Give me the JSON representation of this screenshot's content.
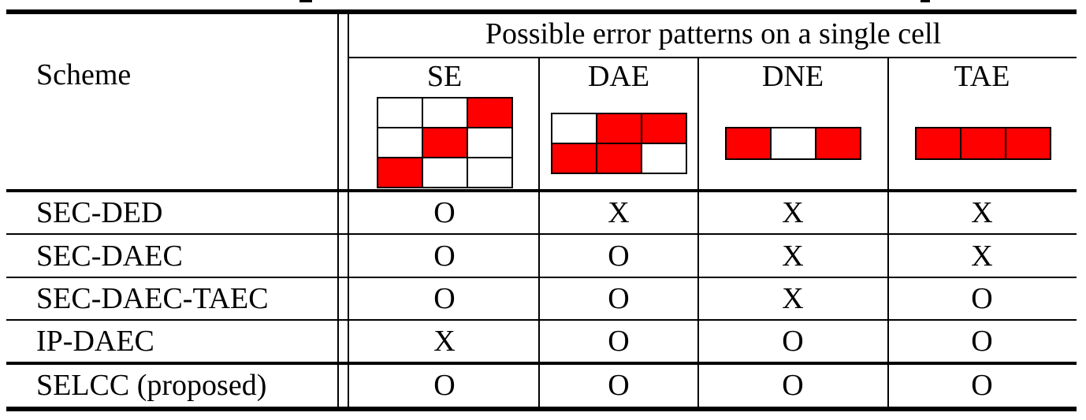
{
  "table": {
    "scheme_header": "Scheme",
    "group_header": "Possible error patterns on a single cell",
    "columns": [
      {
        "label": "SE",
        "pattern": {
          "rows": 3,
          "cols": 3,
          "errors": [
            [
              0,
              2
            ],
            [
              1,
              1
            ],
            [
              2,
              0
            ]
          ]
        }
      },
      {
        "label": "DAE",
        "pattern": {
          "rows": 2,
          "cols": 3,
          "errors": [
            [
              0,
              1
            ],
            [
              0,
              2
            ],
            [
              1,
              0
            ],
            [
              1,
              1
            ]
          ]
        }
      },
      {
        "label": "DNE",
        "pattern": {
          "rows": 1,
          "cols": 3,
          "errors": [
            [
              0,
              0
            ],
            [
              0,
              2
            ]
          ]
        }
      },
      {
        "label": "TAE",
        "pattern": {
          "rows": 1,
          "cols": 3,
          "errors": [
            [
              0,
              0
            ],
            [
              0,
              1
            ],
            [
              0,
              2
            ]
          ]
        }
      }
    ],
    "rows": [
      {
        "scheme": "SEC-DED",
        "values": [
          "O",
          "X",
          "X",
          "X"
        ]
      },
      {
        "scheme": "SEC-DAEC",
        "values": [
          "O",
          "O",
          "X",
          "X"
        ]
      },
      {
        "scheme": "SEC-DAEC-TAEC",
        "values": [
          "O",
          "O",
          "X",
          "O"
        ]
      },
      {
        "scheme": "IP-DAEC",
        "values": [
          "X",
          "O",
          "O",
          "O"
        ]
      },
      {
        "scheme": "SELCC (proposed)",
        "values": [
          "O",
          "O",
          "O",
          "O"
        ]
      }
    ],
    "error_color": "#ff0000"
  }
}
